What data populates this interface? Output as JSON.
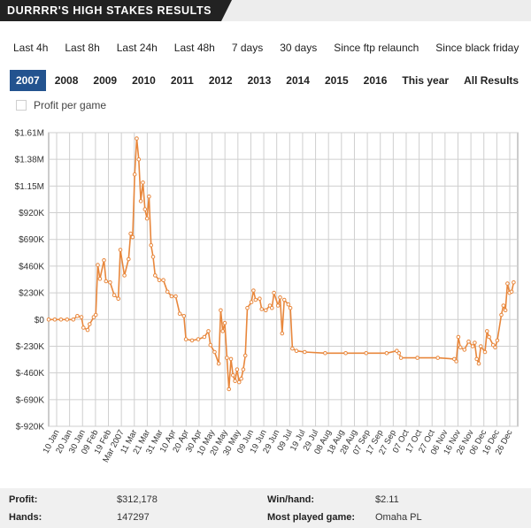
{
  "header": {
    "title": "DURRRR'S HIGH STAKES RESULTS"
  },
  "ranges": [
    "Last 4h",
    "Last 8h",
    "Last 24h",
    "Last 48h",
    "7 days",
    "30 days",
    "Since ftp relaunch",
    "Since black friday"
  ],
  "years": [
    "2007",
    "2008",
    "2009",
    "2010",
    "2011",
    "2012",
    "2013",
    "2014",
    "2015",
    "2016",
    "This year",
    "All Results"
  ],
  "active_year": "2007",
  "profit_per_game": {
    "label": "Profit per game",
    "checked": false
  },
  "chart_data": {
    "type": "line",
    "y_ticks": [
      "$1.61M",
      "$1.38M",
      "$1.15M",
      "$920K",
      "$690K",
      "$460K",
      "$230K",
      "$0",
      "$-230K",
      "$-460K",
      "$-690K",
      "$-920K"
    ],
    "ylim": [
      -920000,
      1610000
    ],
    "x_ticks": [
      "10 Jan",
      "20 Jan",
      "30 Jan",
      "09 Feb",
      "19 Feb",
      "Mar 2007",
      "11 Mar",
      "21 Mar",
      "31 Mar",
      "10 Apr",
      "20 Apr",
      "30 Apr",
      "10 May",
      "20 May",
      "30 May",
      "09 Jun",
      "19 Jun",
      "29 Jun",
      "09 Jul",
      "19 Jul",
      "29 Jul",
      "08 Aug",
      "18 Aug",
      "28 Aug",
      "07 Sep",
      "17 Sep",
      "27 Sep",
      "07 Oct",
      "17 Oct",
      "27 Oct",
      "06 Nov",
      "16 Nov",
      "26 Nov",
      "06 Dec",
      "16 Dec",
      "26 Dec"
    ],
    "grid": true,
    "color": "#e8873c",
    "series": [
      {
        "values": [
          [
            0,
            0
          ],
          [
            3,
            0
          ],
          [
            6,
            0
          ],
          [
            9,
            0
          ],
          [
            12,
            0
          ],
          [
            14,
            30000
          ],
          [
            16,
            20000
          ],
          [
            17,
            -70000
          ],
          [
            19,
            -90000
          ],
          [
            20,
            -40000
          ],
          [
            22,
            20000
          ],
          [
            23,
            40000
          ],
          [
            24,
            470000
          ],
          [
            25,
            350000
          ],
          [
            27,
            510000
          ],
          [
            28,
            330000
          ],
          [
            30,
            320000
          ],
          [
            32,
            210000
          ],
          [
            34,
            180000
          ],
          [
            35,
            600000
          ],
          [
            37,
            380000
          ],
          [
            39,
            520000
          ],
          [
            40,
            740000
          ],
          [
            41,
            710000
          ],
          [
            42,
            1250000
          ],
          [
            43,
            1560000
          ],
          [
            44,
            1380000
          ],
          [
            45,
            1020000
          ],
          [
            46,
            1180000
          ],
          [
            47,
            950000
          ],
          [
            48,
            870000
          ],
          [
            49,
            1060000
          ],
          [
            50,
            640000
          ],
          [
            51,
            540000
          ],
          [
            52,
            380000
          ],
          [
            54,
            340000
          ],
          [
            56,
            340000
          ],
          [
            58,
            240000
          ],
          [
            60,
            200000
          ],
          [
            62,
            200000
          ],
          [
            64,
            50000
          ],
          [
            66,
            30000
          ],
          [
            67,
            -170000
          ],
          [
            70,
            -180000
          ],
          [
            73,
            -170000
          ],
          [
            76,
            -150000
          ],
          [
            78,
            -100000
          ],
          [
            79,
            -220000
          ],
          [
            81,
            -280000
          ],
          [
            83,
            -380000
          ],
          [
            84,
            80000
          ],
          [
            85,
            -100000
          ],
          [
            86,
            -30000
          ],
          [
            87,
            -330000
          ],
          [
            88,
            -600000
          ],
          [
            89,
            -340000
          ],
          [
            90,
            -480000
          ],
          [
            91,
            -530000
          ],
          [
            92,
            -430000
          ],
          [
            93,
            -540000
          ],
          [
            94,
            -510000
          ],
          [
            95,
            -430000
          ],
          [
            96,
            -310000
          ],
          [
            97,
            100000
          ],
          [
            99,
            150000
          ],
          [
            100,
            250000
          ],
          [
            101,
            170000
          ],
          [
            103,
            180000
          ],
          [
            104,
            90000
          ],
          [
            106,
            80000
          ],
          [
            108,
            120000
          ],
          [
            109,
            100000
          ],
          [
            110,
            230000
          ],
          [
            112,
            120000
          ],
          [
            113,
            190000
          ],
          [
            114,
            -120000
          ],
          [
            115,
            170000
          ],
          [
            117,
            130000
          ],
          [
            118,
            100000
          ],
          [
            119,
            -250000
          ],
          [
            121,
            -270000
          ],
          [
            125,
            -280000
          ],
          [
            135,
            -290000
          ],
          [
            145,
            -290000
          ],
          [
            155,
            -290000
          ],
          [
            165,
            -290000
          ],
          [
            170,
            -270000
          ],
          [
            171,
            -290000
          ],
          [
            172,
            -330000
          ],
          [
            180,
            -330000
          ],
          [
            190,
            -330000
          ],
          [
            198,
            -340000
          ],
          [
            199,
            -360000
          ],
          [
            200,
            -150000
          ],
          [
            201,
            -240000
          ],
          [
            203,
            -260000
          ],
          [
            205,
            -190000
          ],
          [
            207,
            -230000
          ],
          [
            208,
            -200000
          ],
          [
            209,
            -340000
          ],
          [
            210,
            -380000
          ],
          [
            211,
            -230000
          ],
          [
            213,
            -280000
          ],
          [
            214,
            -100000
          ],
          [
            215,
            -150000
          ],
          [
            217,
            -220000
          ],
          [
            218,
            -240000
          ],
          [
            219,
            -180000
          ],
          [
            221,
            40000
          ],
          [
            222,
            120000
          ],
          [
            223,
            80000
          ],
          [
            224,
            310000
          ],
          [
            225,
            230000
          ],
          [
            226,
            240000
          ],
          [
            227,
            320000
          ]
        ]
      }
    ]
  },
  "footer": {
    "profit_label": "Profit:",
    "profit_value": "$312,178",
    "hands_label": "Hands:",
    "hands_value": "147297",
    "winhand_label": "Win/hand:",
    "winhand_value": "$2.11",
    "game_label": "Most played game:",
    "game_value": "Omaha PL"
  }
}
